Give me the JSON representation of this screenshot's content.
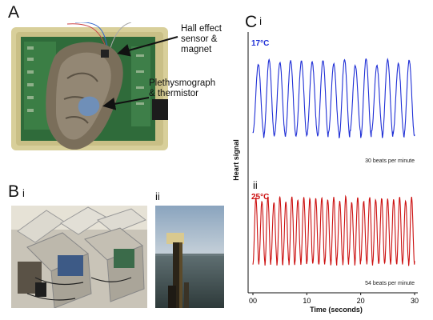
{
  "panelA": {
    "letter": "A",
    "label_hall": [
      "Hall effect",
      "sensor &",
      "magnet"
    ],
    "label_pleth": [
      "Plethysmograph",
      "& thermistor"
    ]
  },
  "panelB": {
    "letter": "B",
    "sub_i": "i",
    "sub_ii": "ii"
  },
  "panelC": {
    "letter": "C",
    "sub_i": "i",
    "sub_ii": "ii",
    "ylabel": "Heart signal",
    "xlabel": "Time (seconds)",
    "ticks": [
      "00",
      "10",
      "20",
      "30"
    ],
    "trace_i_temp": "17°C",
    "trace_ii_temp": "25°C",
    "trace_i_rate": "30 beats per minute",
    "trace_ii_rate": "54 beats per minute"
  },
  "colors": {
    "trace_i": "#1f2fd6",
    "trace_ii": "#cc1111"
  },
  "chart_data": [
    {
      "type": "line",
      "series": [
        {
          "name": "17°C",
          "beats": 15
        }
      ],
      "x": [
        0,
        30
      ],
      "xlim": [
        0,
        30
      ],
      "xticks": [
        0,
        10,
        20,
        30
      ],
      "xlabel": "Time (seconds)",
      "ylabel": "Heart signal",
      "annotation": "30 beats per minute"
    },
    {
      "type": "line",
      "series": [
        {
          "name": "25°C",
          "beats": 27
        }
      ],
      "x": [
        0,
        30
      ],
      "xlim": [
        0,
        30
      ],
      "xticks": [
        0,
        10,
        20,
        30
      ],
      "xlabel": "Time (seconds)",
      "ylabel": "Heart signal",
      "annotation": "54 beats per minute"
    }
  ]
}
